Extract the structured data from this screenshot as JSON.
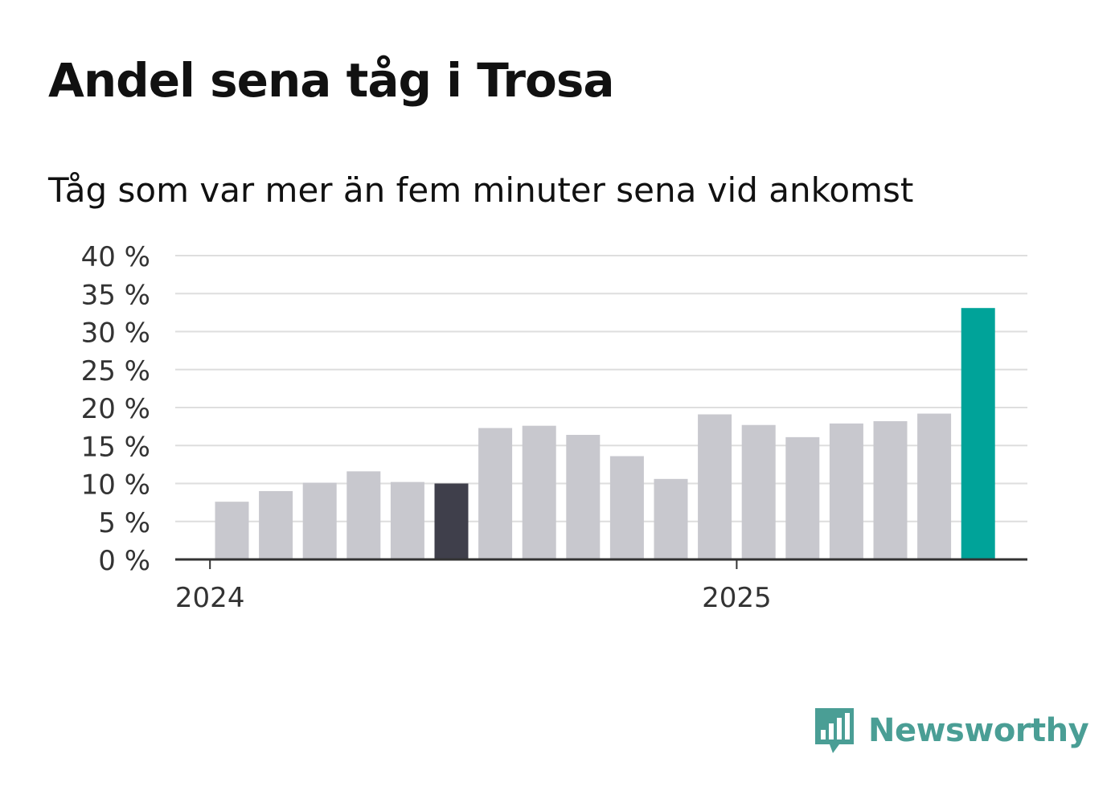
{
  "header": {
    "title": "Andel sena tåg i Trosa",
    "subtitle": "Tåg som var mer än fem minuter sena vid ankomst"
  },
  "brand": {
    "name": "Newsworthy",
    "color": "#4a9e95",
    "icon": "newsworthy-chart-bubble-icon"
  },
  "chart_data": {
    "type": "bar",
    "title": "Andel sena tåg i Trosa",
    "subtitle": "Tåg som var mer än fem minuter sena vid ankomst",
    "xlabel": "",
    "ylabel": "",
    "ylim": [
      0,
      40
    ],
    "yticks": [
      0,
      5,
      10,
      15,
      20,
      25,
      30,
      35,
      40
    ],
    "ytick_suffix": " %",
    "xtick_labels": [
      {
        "label": "2024",
        "index": -0.5
      },
      {
        "label": "2025",
        "index": 11.5
      }
    ],
    "grid": true,
    "values": [
      7.6,
      9.0,
      10.1,
      11.6,
      10.2,
      10.0,
      17.3,
      17.6,
      16.4,
      13.6,
      10.6,
      19.1,
      17.7,
      16.1,
      17.9,
      18.2,
      19.2,
      33.1
    ],
    "highlight": {
      "5": "dark",
      "17": "accent"
    },
    "colors": {
      "default": "#c8c8ce",
      "dark": "#3f3f4b",
      "accent": "#00a399",
      "grid": "#dedede",
      "axis": "#333333"
    }
  }
}
